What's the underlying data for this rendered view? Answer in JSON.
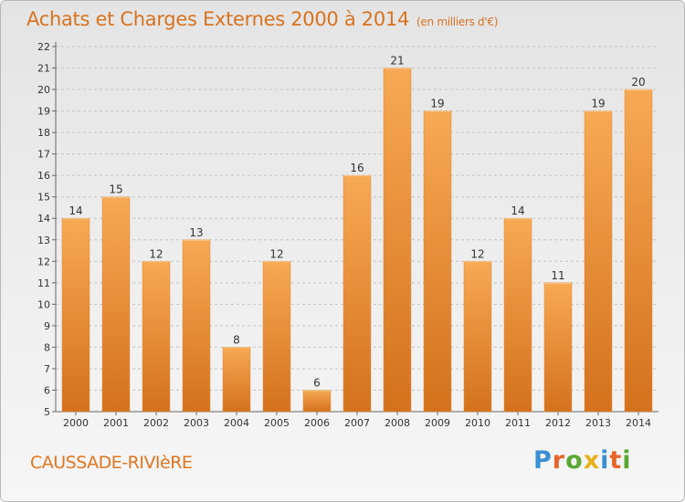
{
  "header": {
    "title": "Achats et Charges Externes 2000 à 2014",
    "subtitle": "(en milliers d'€)"
  },
  "footer": {
    "commune": "CAUSSADE-RIVIèRE",
    "logo": "Proxiti"
  },
  "colors": {
    "bar_light": "#f7a954",
    "bar_dark": "#d4711c",
    "title": "#d8721f"
  },
  "chart_data": {
    "type": "bar",
    "title": "Achats et Charges Externes 2000 à 2014",
    "subtitle": "(en milliers d'€)",
    "categories": [
      "2000",
      "2001",
      "2002",
      "2003",
      "2004",
      "2005",
      "2006",
      "2007",
      "2008",
      "2009",
      "2010",
      "2011",
      "2012",
      "2013",
      "2014"
    ],
    "values": [
      14,
      15,
      12,
      13,
      8,
      12,
      6,
      16,
      21,
      19,
      12,
      14,
      11,
      19,
      20
    ],
    "ylim": [
      5,
      22
    ],
    "yticks": [
      5,
      6,
      7,
      8,
      9,
      10,
      11,
      12,
      13,
      14,
      15,
      16,
      17,
      18,
      19,
      20,
      21,
      22
    ],
    "grid": true,
    "grid_style": "dashed horizontal",
    "data_labels": true
  }
}
